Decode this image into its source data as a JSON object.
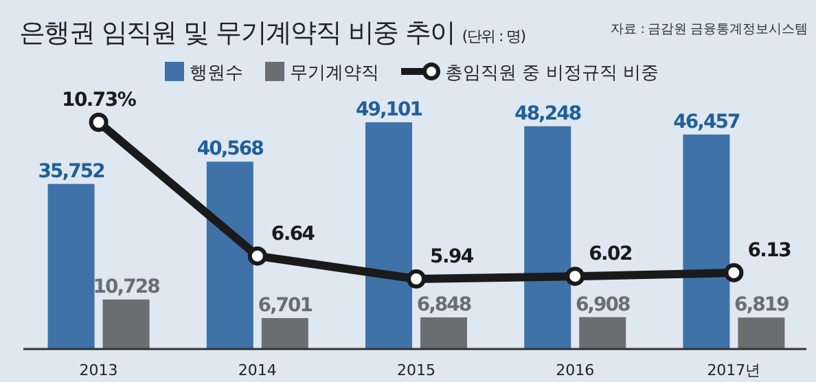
{
  "chart_data": {
    "type": "bar",
    "title": "은행권 임직원 및 무기계약직 비중 추이",
    "subtitle": "(단위 : 명)",
    "annotations": [
      "자료 : 금감원 금융통계정보시스템"
    ],
    "categories": [
      "2013",
      "2014",
      "2015",
      "2016",
      "2017년"
    ],
    "series": [
      {
        "name": "행원수",
        "color": "#3f72a8",
        "values": [
          35752,
          40568,
          49101,
          48248,
          46457
        ],
        "value_labels": [
          "35,752",
          "40,568",
          "49,101",
          "48,248",
          "46,457"
        ]
      },
      {
        "name": "무기계약직",
        "color": "#6b6e70",
        "values": [
          10728,
          6701,
          6848,
          6908,
          6819
        ],
        "value_labels": [
          "10,728",
          "6,701",
          "6,848",
          "6,908",
          "6,819"
        ]
      },
      {
        "name": "총임직원 중 비정규직 비중",
        "type": "line",
        "axis": "y2",
        "color": "#1a1a1a",
        "marker": "circle",
        "values": [
          10.73,
          6.64,
          5.94,
          6.02,
          6.13
        ],
        "value_labels": [
          "10.73%",
          "6.64",
          "5.94",
          "6.02",
          "6.13"
        ]
      }
    ],
    "tick_labels": "x",
    "legend": "top",
    "grid": false
  }
}
